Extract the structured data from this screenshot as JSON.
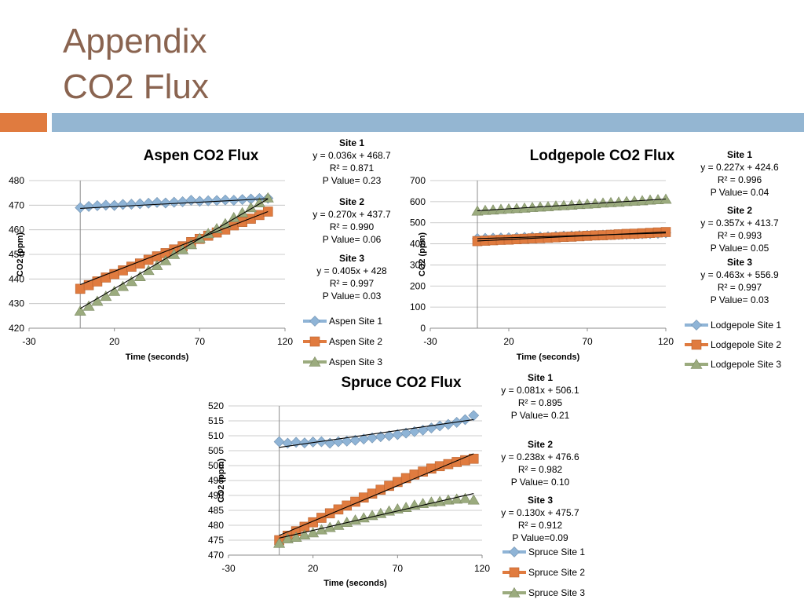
{
  "slide": {
    "title_line1": "Appendix",
    "title_line2": "CO2 Flux",
    "accent_orange": "#e07b3f",
    "accent_blue": "#94b6d2"
  },
  "chart_data": [
    {
      "type": "scatter",
      "title": "Aspen CO2 Flux",
      "xlabel": "Time (seconds)",
      "ylabel": "CO2 (ppm)",
      "xlim": [
        -30,
        120
      ],
      "ylim": [
        420,
        480
      ],
      "xticks": [
        -30,
        20,
        70,
        120
      ],
      "yticks": [
        420,
        430,
        440,
        450,
        460,
        470,
        480
      ],
      "legend": "right",
      "x_start": 0,
      "x_end": 110,
      "x_step": 5,
      "series": [
        {
          "name": "Aspen Site 1",
          "color": "#8fb4d6",
          "marker": "diamond",
          "slope": 0.036,
          "intercept": 468.7,
          "equation": "y = 0.036x + 468.7",
          "r2": "R² = 0.871",
          "p": "P Value= 0.23",
          "site": "Site 1",
          "values": [
            469.0,
            469.5,
            469.8,
            470.0,
            469.9,
            470.3,
            470.4,
            470.6,
            470.8,
            471.1,
            470.9,
            471.2,
            471.4,
            472.0,
            471.6,
            471.8,
            471.9,
            472.1,
            472.0,
            472.3,
            472.5,
            472.7,
            472.8
          ]
        },
        {
          "name": "Aspen Site 2",
          "color": "#e07b3f",
          "marker": "square",
          "slope": 0.27,
          "intercept": 437.7,
          "equation": "y = 0.270x + 437.7",
          "r2": "R² = 0.990",
          "p": "P Value= 0.06",
          "site": "Site 2",
          "values": [
            436.0,
            437.5,
            439.0,
            440.6,
            442.0,
            443.5,
            445.0,
            446.3,
            447.8,
            449.2,
            450.5,
            452.0,
            453.3,
            455.0,
            456.3,
            457.6,
            458.9,
            460.1,
            461.8,
            463.2,
            464.5,
            466.0,
            467.4
          ]
        },
        {
          "name": "Aspen Site 3",
          "color": "#9bab7e",
          "marker": "triangle",
          "slope": 0.405,
          "intercept": 428,
          "equation": "y = 0.405x + 428",
          "r2": "R² = 0.997",
          "p": "P Value= 0.03",
          "site": "Site 3",
          "values": [
            427.0,
            429.0,
            431.0,
            433.0,
            435.0,
            437.0,
            439.0,
            441.0,
            443.5,
            445.5,
            447.5,
            450.0,
            452.0,
            454.0,
            456.5,
            458.5,
            460.5,
            462.5,
            465.0,
            467.0,
            469.0,
            471.0,
            473.0
          ]
        }
      ]
    },
    {
      "type": "scatter",
      "title": "Lodgepole CO2 Flux",
      "xlabel": "Time (seconds)",
      "ylabel": "CO2 (ppm)",
      "xlim": [
        -30,
        120
      ],
      "ylim": [
        0,
        700
      ],
      "xticks": [
        -30,
        20,
        70,
        120
      ],
      "yticks": [
        0,
        100,
        200,
        300,
        400,
        500,
        600,
        700
      ],
      "legend": "right",
      "x_start": 0,
      "x_end": 120,
      "x_step": 5,
      "series": [
        {
          "name": "Lodgepole Site 1",
          "color": "#8fb4d6",
          "marker": "diamond",
          "slope": 0.227,
          "intercept": 424.6,
          "equation": "y = 0.227x + 424.6",
          "r2": "R² = 0.996",
          "p": "P Value= 0.04",
          "site": "Site 1",
          "values": [
            425,
            426,
            427,
            428,
            429,
            430,
            431,
            432,
            433,
            434,
            436,
            437,
            438,
            439,
            440,
            441,
            442,
            443,
            444,
            445,
            446,
            448,
            449,
            450,
            452
          ]
        },
        {
          "name": "Lodgepole Site 2",
          "color": "#e07b3f",
          "marker": "square",
          "slope": 0.357,
          "intercept": 413.7,
          "equation": "y = 0.357x + 413.7",
          "r2": "R² = 0.993",
          "p": "P Value= 0.05",
          "site": "Site 2",
          "values": [
            413,
            415,
            417,
            419,
            420,
            422,
            424,
            426,
            427,
            429,
            431,
            433,
            434,
            436,
            438,
            440,
            441,
            443,
            445,
            447,
            448,
            450,
            452,
            454,
            456
          ]
        },
        {
          "name": "Lodgepole Site 3",
          "color": "#9bab7e",
          "marker": "triangle",
          "slope": 0.463,
          "intercept": 556.9,
          "equation": "y = 0.463x + 556.9",
          "r2": "R² = 0.997",
          "p": "P Value= 0.03",
          "site": "Site 3",
          "values": [
            556,
            559,
            561,
            564,
            566,
            568,
            570,
            573,
            575,
            577,
            580,
            582,
            584,
            587,
            589,
            591,
            594,
            596,
            598,
            601,
            603,
            605,
            608,
            610,
            612
          ]
        }
      ]
    },
    {
      "type": "scatter",
      "title": "Spruce CO2 Flux",
      "xlabel": "Time (seconds)",
      "ylabel": "CO2 (ppm)",
      "xlim": [
        -30,
        120
      ],
      "ylim": [
        470,
        520
      ],
      "xticks": [
        -30,
        20,
        70,
        120
      ],
      "yticks": [
        470,
        475,
        480,
        485,
        490,
        495,
        500,
        505,
        510,
        515,
        520
      ],
      "legend": "right",
      "x_start": 0,
      "x_end": 115,
      "x_step": 5,
      "series": [
        {
          "name": "Spruce Site 1",
          "color": "#8fb4d6",
          "marker": "diamond",
          "slope": 0.081,
          "intercept": 506.1,
          "equation": "y = 0.081x + 506.1",
          "r2": "R² = 0.895",
          "p": "P Value= 0.21",
          "site": "Site 1",
          "values": [
            508.0,
            507.5,
            507.8,
            507.6,
            507.9,
            508.0,
            507.5,
            508.0,
            508.2,
            508.5,
            508.9,
            509.3,
            509.7,
            510.0,
            510.4,
            510.9,
            511.4,
            511.9,
            512.6,
            513.3,
            513.8,
            514.5,
            515.4,
            516.8
          ]
        },
        {
          "name": "Spruce Site 2",
          "color": "#e07b3f",
          "marker": "square",
          "slope": 0.238,
          "intercept": 476.6,
          "equation": "y = 0.238x + 476.6",
          "r2": "R² = 0.982",
          "p": "P Value= 0.10",
          "site": "Site 2",
          "values": [
            475.0,
            476.5,
            478.0,
            479.5,
            481.0,
            482.5,
            484.0,
            485.3,
            486.6,
            487.9,
            489.3,
            490.6,
            491.9,
            493.2,
            494.5,
            495.8,
            497.0,
            498.0,
            499.0,
            499.8,
            500.5,
            501.2,
            501.8,
            502.3
          ]
        },
        {
          "name": "Spruce Site 3",
          "color": "#9bab7e",
          "marker": "triangle",
          "slope": 0.13,
          "intercept": 475.7,
          "equation": "y = 0.130x + 475.7",
          "r2": "R² = 0.912",
          "p": "P Value=0.09",
          "site": "Site 3",
          "values": [
            474.0,
            475.5,
            476.0,
            476.8,
            477.5,
            478.5,
            479.3,
            480.0,
            481.0,
            481.8,
            482.5,
            483.3,
            484.0,
            484.8,
            485.5,
            486.0,
            486.8,
            487.3,
            487.8,
            488.0,
            488.5,
            488.8,
            489.0,
            488.5
          ]
        }
      ]
    }
  ]
}
